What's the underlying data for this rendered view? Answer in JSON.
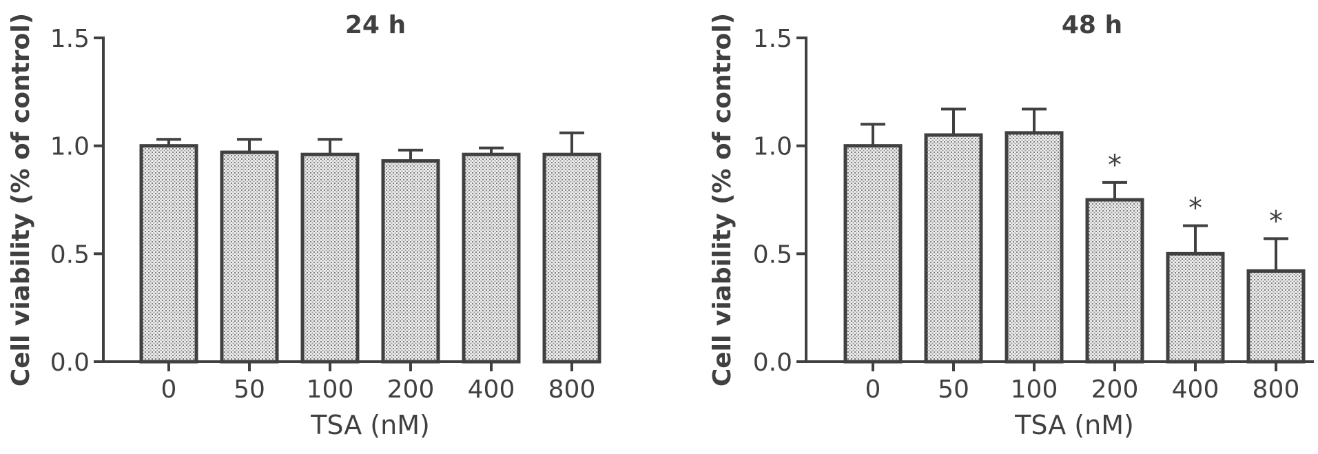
{
  "chart_data": [
    {
      "type": "bar",
      "title": "24 h",
      "xlabel": "TSA (nM)",
      "ylabel": "Cell viability (% of control)",
      "ylim": [
        0,
        1.5
      ],
      "yticks": [
        "0.0",
        "0.5",
        "1.0",
        "1.5"
      ],
      "categories": [
        "0",
        "50",
        "100",
        "200",
        "400",
        "800"
      ],
      "values": [
        1.0,
        0.97,
        0.96,
        0.93,
        0.96,
        0.96
      ],
      "errors": [
        0.03,
        0.06,
        0.07,
        0.05,
        0.03,
        0.1
      ],
      "significance": [
        "",
        "",
        "",
        "",
        "",
        ""
      ],
      "grid": false
    },
    {
      "type": "bar",
      "title": "48 h",
      "xlabel": "TSA (nM)",
      "ylabel": "Cell viability (% of control)",
      "ylim": [
        0,
        1.5
      ],
      "yticks": [
        "0.0",
        "0.5",
        "1.0",
        "1.5"
      ],
      "categories": [
        "0",
        "50",
        "100",
        "200",
        "400",
        "800"
      ],
      "values": [
        1.0,
        1.05,
        1.06,
        0.75,
        0.5,
        0.42
      ],
      "errors": [
        0.1,
        0.12,
        0.11,
        0.08,
        0.13,
        0.15
      ],
      "significance": [
        "",
        "",
        "",
        "*",
        "*",
        "*"
      ],
      "grid": false
    }
  ],
  "colors": {
    "ink": "#404040",
    "bar_pattern": "#8a8a8a"
  }
}
